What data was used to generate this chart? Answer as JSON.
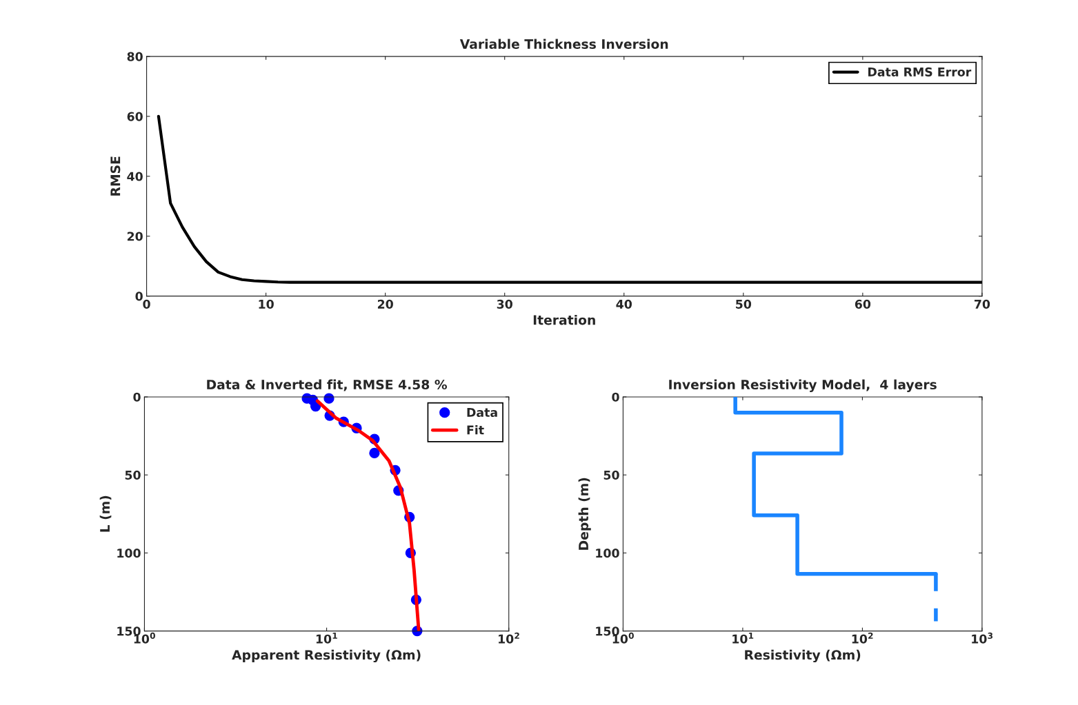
{
  "chart_data": [
    {
      "type": "line",
      "title": "Variable Thickness Inversion",
      "xlabel": "Iteration",
      "ylabel": "RMSE",
      "xlim": [
        0,
        70
      ],
      "xticks": [
        0,
        10,
        20,
        30,
        40,
        50,
        60,
        70
      ],
      "ylim": [
        0,
        80
      ],
      "yticks": [
        0,
        20,
        40,
        60,
        80
      ],
      "grid": false,
      "legend": "top right",
      "series": [
        {
          "name": "Data RMS Error",
          "color": "#000000",
          "x": [
            1,
            2,
            3,
            4,
            5,
            6,
            7,
            8,
            9,
            10,
            11,
            12,
            20,
            70
          ],
          "values": [
            60,
            31,
            23,
            16.5,
            11.5,
            8,
            6.5,
            5.5,
            5.1,
            4.9,
            4.7,
            4.6,
            4.6,
            4.6
          ]
        }
      ]
    },
    {
      "type": "scatter",
      "title": "Data & Inverted fit, RMSE 4.58 %",
      "xlabel": "Apparent Resistivity (Ωm)",
      "ylabel": "L (m)",
      "log": "x",
      "xlim": [
        1,
        100
      ],
      "xticks": [
        {
          "value": 1,
          "label": "10$^{0}$"
        },
        {
          "value": 10,
          "label": "10$^{1}$"
        },
        {
          "value": 100,
          "label": "10$^{2}$"
        }
      ],
      "ylim": [
        150,
        0
      ],
      "yticks": [
        0,
        50,
        100,
        150
      ],
      "grid": false,
      "legend": "top right",
      "series": [
        {
          "name": "Data",
          "type": "scatter",
          "marker": "circle",
          "color": "#0000ff",
          "x": [
            7.8,
            10.3,
            8.4,
            8.7,
            10.4,
            12.4,
            14.6,
            18.3,
            18.3,
            23.8,
            24.8,
            28.5,
            28.9,
            31,
            31.4
          ],
          "values": [
            1,
            1,
            2,
            6,
            12,
            16,
            20,
            27,
            36,
            47,
            60,
            77,
            100,
            130,
            150
          ]
        },
        {
          "name": "Fit",
          "type": "line",
          "line_style": "solid",
          "color": "#ff0000",
          "x": [
            8.9,
            11.3,
            15,
            17.9,
            22,
            25.4,
            28.5,
            30.2,
            32
          ],
          "values": [
            2.6,
            13.7,
            21.6,
            28,
            41,
            58,
            81,
            111,
            149
          ]
        }
      ]
    },
    {
      "type": "line",
      "title": "Inversion Resistivity Model,  4 layers",
      "xlabel": "Resistivity (Ωm)",
      "ylabel": "Depth (m)",
      "log": "x",
      "xlim": [
        1,
        1000
      ],
      "xticks": [
        {
          "value": 1,
          "label": "10$^{0}$"
        },
        {
          "value": 10,
          "label": "10$^{1}$"
        },
        {
          "value": 100,
          "label": "10$^{2}$"
        },
        {
          "value": 1000,
          "label": "10$^{3}$"
        }
      ],
      "ylim": [
        150,
        0
      ],
      "yticks": [
        0,
        50,
        100,
        150
      ],
      "grid": false,
      "legend": false,
      "series": [
        {
          "color": "#1a85ff",
          "line_style": "solid",
          "x": [
            8.67,
            8.67,
            66.8,
            66.8,
            12.4,
            12.4,
            28.6,
            28.6,
            411
          ],
          "values": [
            0,
            10.1,
            10.1,
            36.2,
            36.2,
            75.9,
            75.9,
            113.4,
            113.4
          ]
        },
        {
          "color": "#1a85ff",
          "line_style": "dashed",
          "x": [
            411,
            411
          ],
          "values": [
            113.4,
            143.8
          ]
        }
      ]
    }
  ]
}
